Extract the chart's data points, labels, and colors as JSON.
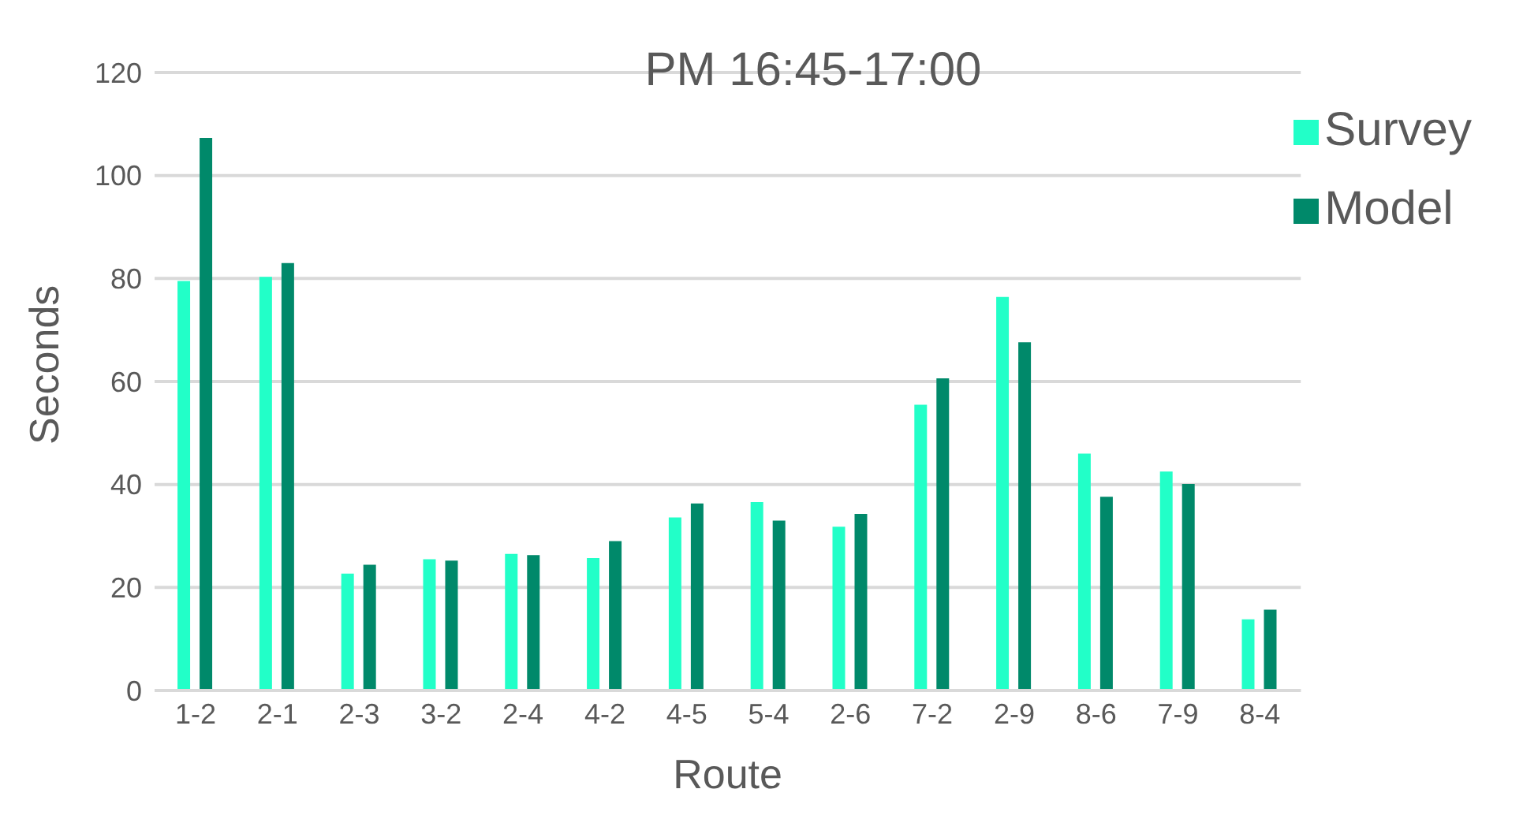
{
  "chart_data": {
    "type": "bar",
    "title": "PM 16:45-17:00",
    "xlabel": "Route",
    "ylabel": "Seconds",
    "categories": [
      "1-2",
      "2-1",
      "2-3",
      "3-2",
      "2-4",
      "4-2",
      "4-5",
      "5-4",
      "2-6",
      "7-2",
      "2-9",
      "8-6",
      "7-9",
      "8-4"
    ],
    "series": [
      {
        "name": "Survey",
        "color": "#22ffc8",
        "values": [
          79.5,
          80.3,
          22.7,
          25.5,
          26.5,
          25.7,
          33.6,
          36.6,
          31.8,
          55.5,
          76.4,
          46.0,
          42.5,
          13.8
        ]
      },
      {
        "name": "Model",
        "color": "#00896a",
        "values": [
          107.3,
          83.0,
          24.4,
          25.2,
          26.3,
          29.0,
          36.3,
          33.0,
          34.3,
          60.6,
          67.6,
          37.6,
          40.1,
          15.7
        ]
      }
    ],
    "ylim": [
      0,
      120
    ],
    "yticks": [
      0,
      20,
      40,
      60,
      80,
      100,
      120
    ],
    "grid": "y",
    "legend": "top right"
  }
}
